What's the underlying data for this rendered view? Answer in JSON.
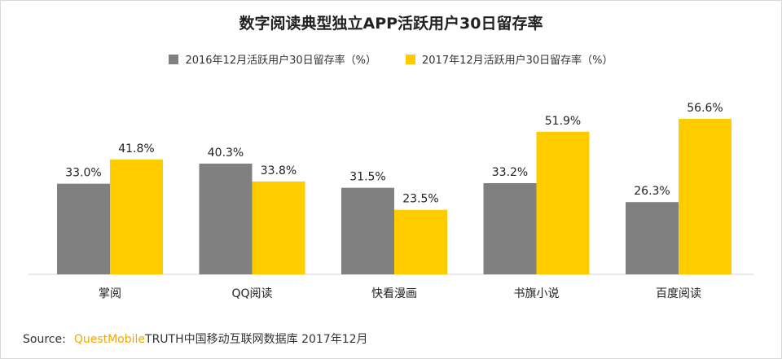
{
  "chart_data": {
    "type": "bar",
    "title": "数字阅读典型独立APP活跃用户30日留存率",
    "categories": [
      "掌阅",
      "QQ阅读",
      "快看漫画",
      "书旗小说",
      "百度阅读"
    ],
    "series": [
      {
        "name": "2016年12月活跃用户30日留存率（%）",
        "values": [
          33.0,
          40.3,
          31.5,
          33.2,
          26.3
        ],
        "labels": [
          "33.0%",
          "40.3%",
          "31.5%",
          "33.2%",
          "26.3%"
        ],
        "color": "#808080"
      },
      {
        "name": "2017年12月活跃用户30日留存率（%）",
        "values": [
          41.8,
          33.8,
          23.5,
          51.9,
          56.6
        ],
        "labels": [
          "41.8%",
          "33.8%",
          "23.5%",
          "51.9%",
          "56.6%"
        ],
        "color": "#ffcc00"
      }
    ],
    "xlabel": "",
    "ylabel": "",
    "ylim": [
      0,
      60
    ],
    "grid": false,
    "legend_position": "top"
  },
  "source": {
    "prefix": "Source:",
    "brand": "QuestMobile",
    "rest": "TRUTH中国移动互联网数据库 2017年12月"
  }
}
